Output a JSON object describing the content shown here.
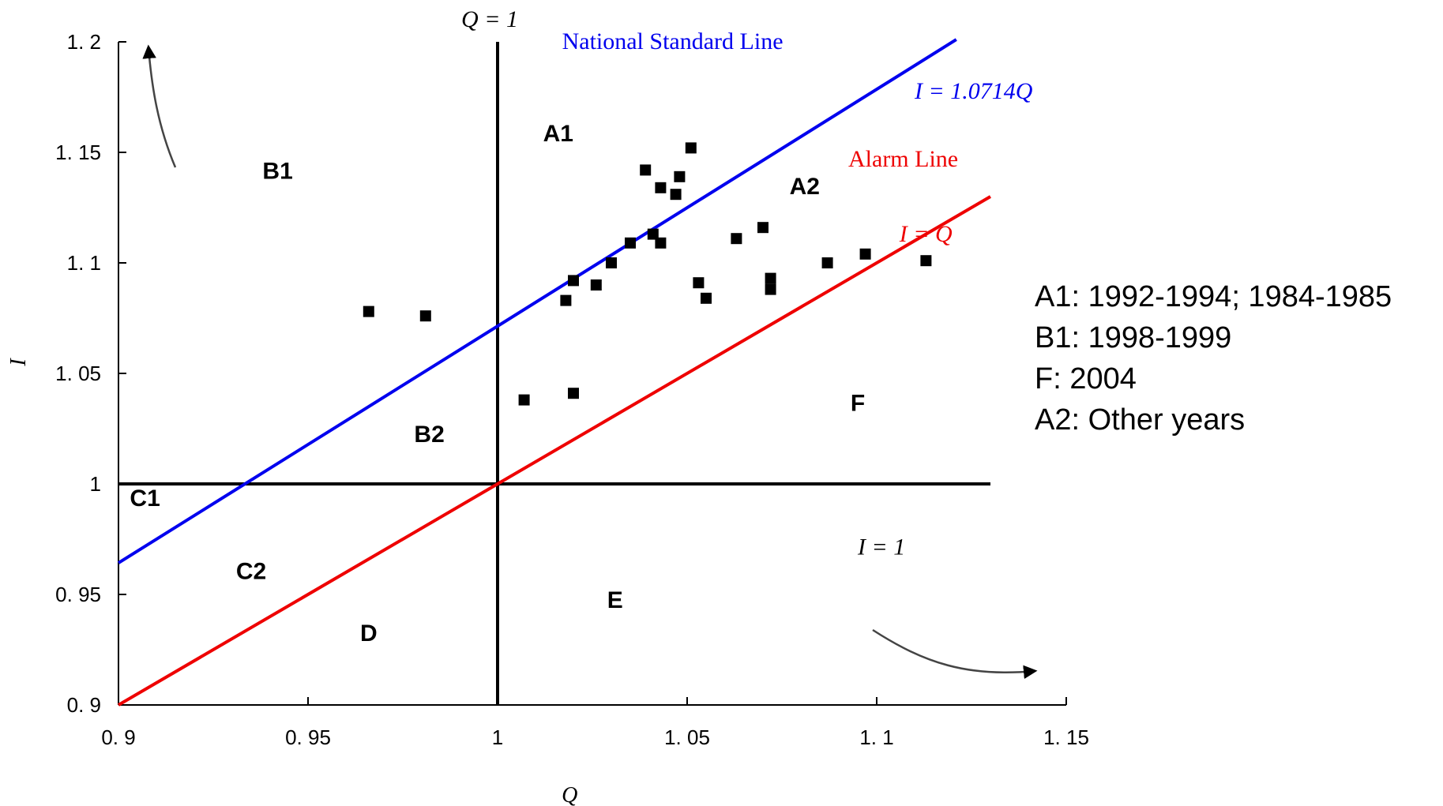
{
  "chart_data": {
    "type": "scatter",
    "title": "",
    "xlabel": "Q",
    "ylabel": "I",
    "xlim": [
      0.9,
      1.15
    ],
    "ylim": [
      0.9,
      1.2
    ],
    "x_ticks": [
      {
        "value": 0.9,
        "label": "0. 9"
      },
      {
        "value": 0.95,
        "label": "0. 95"
      },
      {
        "value": 1.0,
        "label": "1"
      },
      {
        "value": 1.05,
        "label": "1. 05"
      },
      {
        "value": 1.1,
        "label": "1. 1"
      },
      {
        "value": 1.15,
        "label": "1. 15"
      }
    ],
    "y_ticks": [
      {
        "value": 0.9,
        "label": "0. 9"
      },
      {
        "value": 0.95,
        "label": "0. 95"
      },
      {
        "value": 1.0,
        "label": "1"
      },
      {
        "value": 1.05,
        "label": "1. 05"
      },
      {
        "value": 1.1,
        "label": "1. 1"
      },
      {
        "value": 1.15,
        "label": "1. 15"
      },
      {
        "value": 1.2,
        "label": "1. 2"
      }
    ],
    "grid": false,
    "points": [
      {
        "x": 0.966,
        "y": 1.078
      },
      {
        "x": 0.981,
        "y": 1.076
      },
      {
        "x": 1.007,
        "y": 1.038
      },
      {
        "x": 1.018,
        "y": 1.083
      },
      {
        "x": 1.02,
        "y": 1.092
      },
      {
        "x": 1.02,
        "y": 1.041
      },
      {
        "x": 1.026,
        "y": 1.09
      },
      {
        "x": 1.03,
        "y": 1.1
      },
      {
        "x": 1.035,
        "y": 1.109
      },
      {
        "x": 1.039,
        "y": 1.142
      },
      {
        "x": 1.041,
        "y": 1.113
      },
      {
        "x": 1.043,
        "y": 1.109
      },
      {
        "x": 1.043,
        "y": 1.134
      },
      {
        "x": 1.047,
        "y": 1.131
      },
      {
        "x": 1.048,
        "y": 1.139
      },
      {
        "x": 1.051,
        "y": 1.152
      },
      {
        "x": 1.053,
        "y": 1.091
      },
      {
        "x": 1.055,
        "y": 1.084
      },
      {
        "x": 1.063,
        "y": 1.111
      },
      {
        "x": 1.07,
        "y": 1.116
      },
      {
        "x": 1.072,
        "y": 1.093
      },
      {
        "x": 1.072,
        "y": 1.088
      },
      {
        "x": 1.087,
        "y": 1.1
      },
      {
        "x": 1.097,
        "y": 1.104
      },
      {
        "x": 1.113,
        "y": 1.101
      }
    ],
    "lines": [
      {
        "name": "National Standard Line",
        "equation": "I = 1.0714Q",
        "slope": 1.0714,
        "color": "#0000ee",
        "x_range": [
          0.9,
          1.121
        ]
      },
      {
        "name": "Alarm Line",
        "equation": "I = Q",
        "slope": 1.0,
        "color": "#ee0000",
        "x_range": [
          0.9,
          1.13
        ]
      }
    ],
    "reference_lines": [
      {
        "label": "Q = 1",
        "orientation": "vertical",
        "value": 1.0,
        "color": "#000000"
      },
      {
        "label": "I = 1",
        "orientation": "horizontal",
        "value": 1.0,
        "color": "#000000"
      }
    ],
    "regions": [
      {
        "label": "A1",
        "x": 1.016,
        "y": 1.155
      },
      {
        "label": "A2",
        "x": 1.081,
        "y": 1.131
      },
      {
        "label": "B1",
        "x": 0.942,
        "y": 1.138
      },
      {
        "label": "B2",
        "x": 0.982,
        "y": 1.019
      },
      {
        "label": "C1",
        "x": 0.907,
        "y": 0.99
      },
      {
        "label": "C2",
        "x": 0.935,
        "y": 0.957
      },
      {
        "label": "D",
        "x": 0.966,
        "y": 0.929
      },
      {
        "label": "E",
        "x": 1.031,
        "y": 0.944
      },
      {
        "label": "F",
        "x": 1.095,
        "y": 1.033
      }
    ],
    "annotations": [
      "A1: 1992-1994; 1984-1985",
      "B1: 1998-1999",
      "F: 2004",
      "A2: Other years"
    ]
  }
}
